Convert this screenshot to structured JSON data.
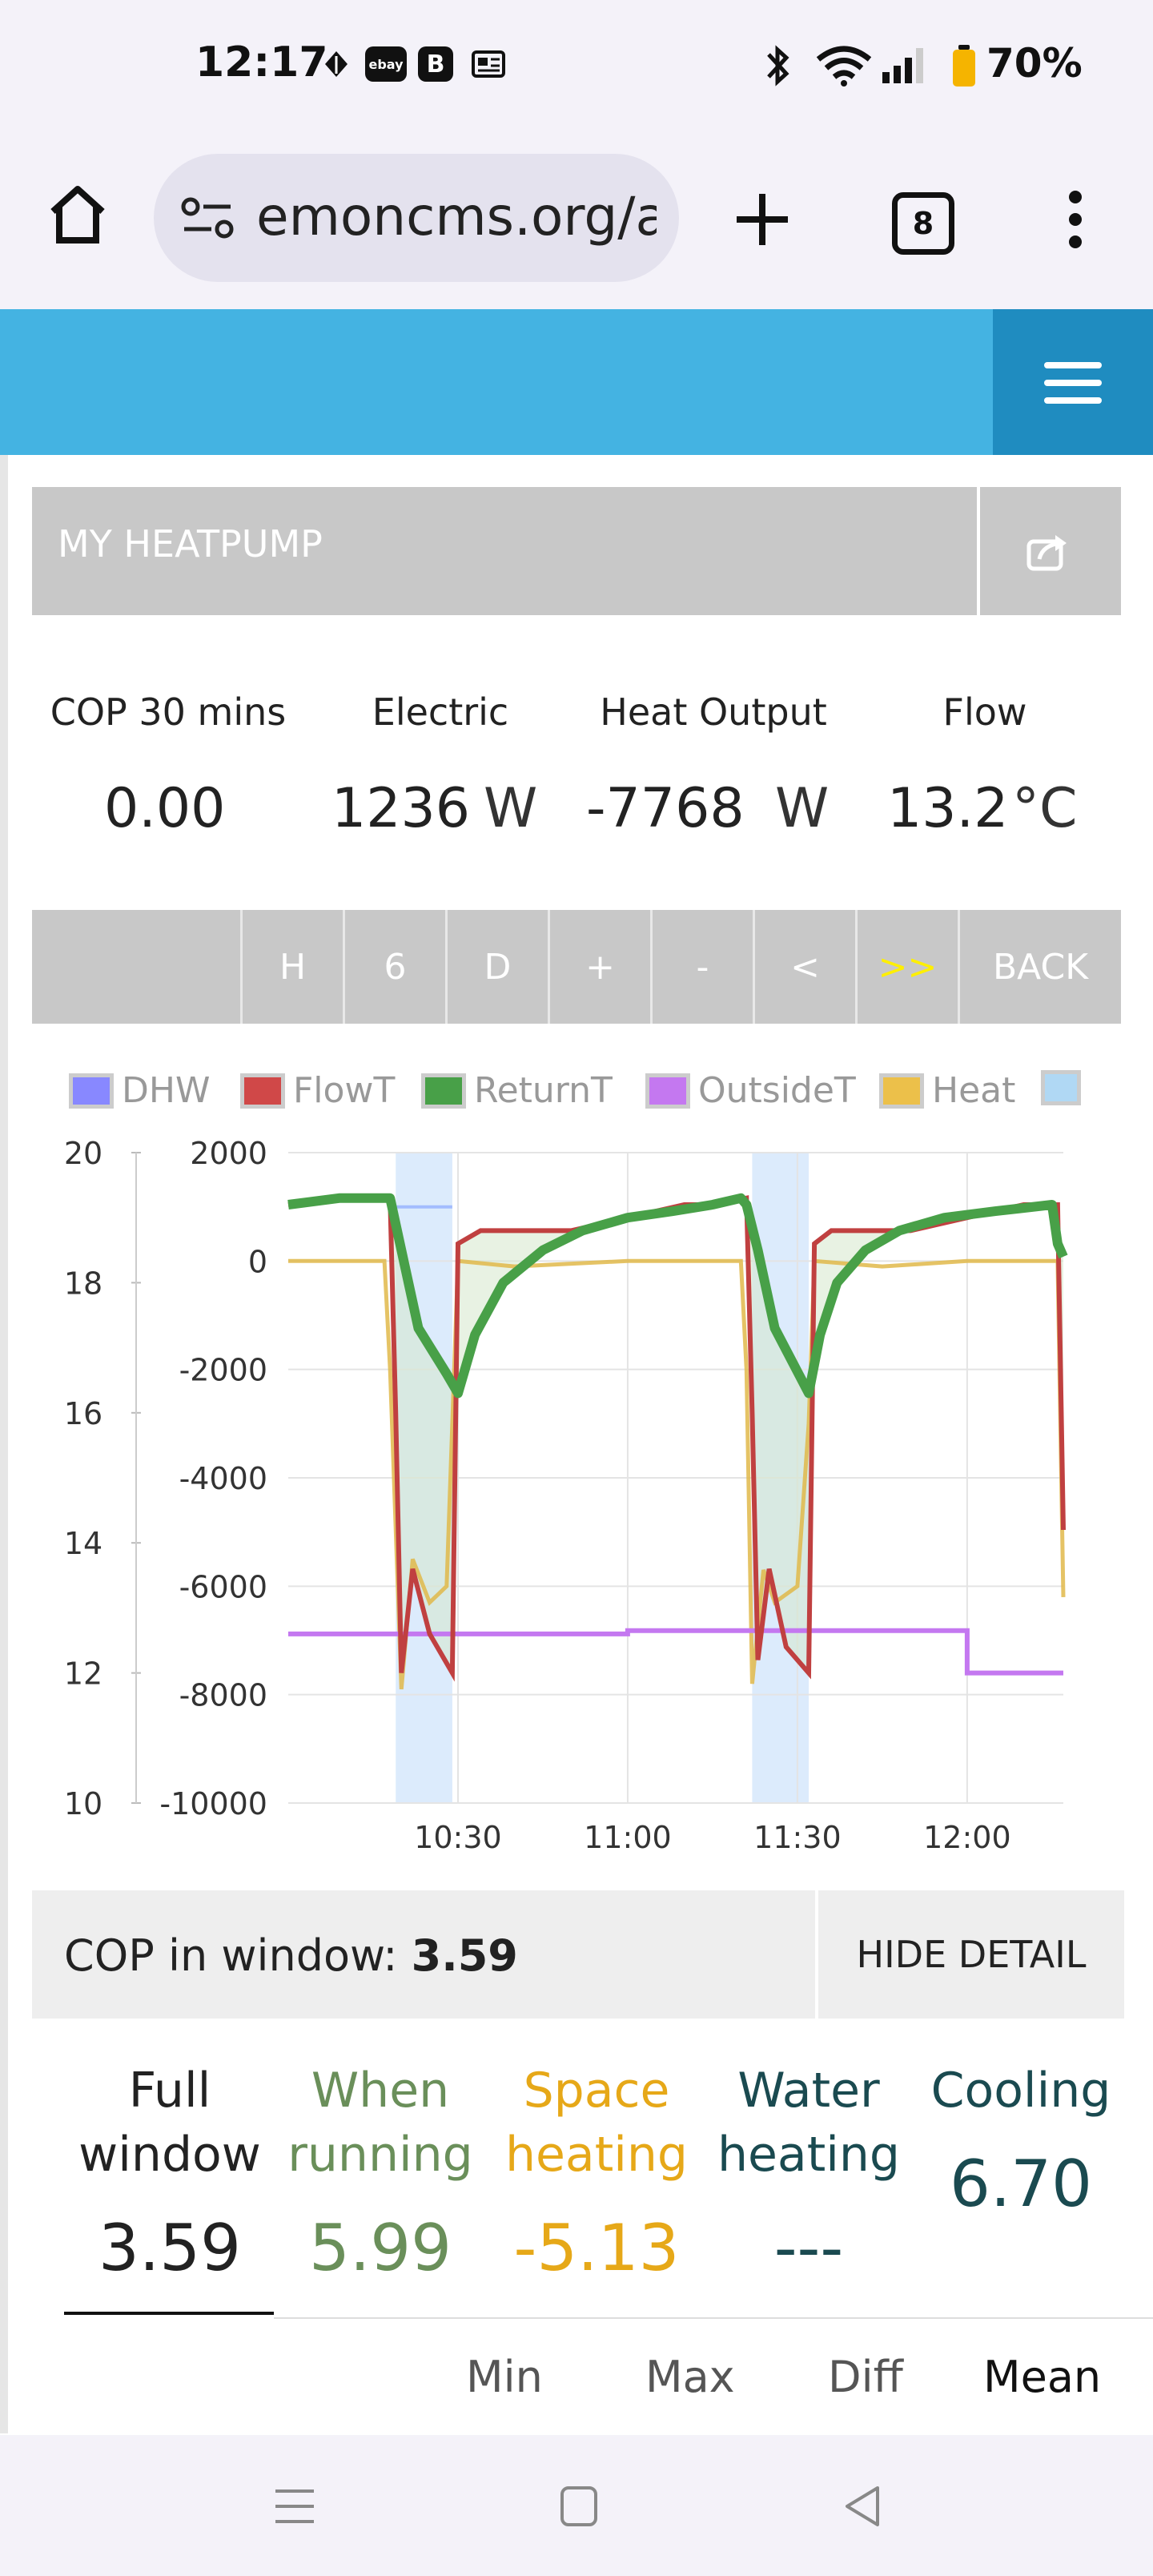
{
  "status_bar": {
    "time": "12:17",
    "notification_icons": [
      "leaf-icon",
      "ebay-icon",
      "b-icon",
      "news-icon"
    ],
    "system_icons": [
      "bluetooth-icon",
      "wifi-icon",
      "signal-icon",
      "battery-icon"
    ],
    "battery_percent": "70%"
  },
  "browser": {
    "url": "emoncms.org/a",
    "tab_count": "8",
    "icons": [
      "home-icon",
      "site-settings-icon",
      "new-tab-icon",
      "tabs-icon",
      "more-icon"
    ]
  },
  "header": {
    "menu_icon": "hamburger-icon",
    "accent": "#44b3e2"
  },
  "app": {
    "title": "MY HEATPUMP",
    "share_icon": "share-icon",
    "stats": [
      {
        "label": "COP 30 mins",
        "value": "0.00",
        "unit": ""
      },
      {
        "label": "Electric",
        "value": "1236",
        "unit": "W"
      },
      {
        "label": "Heat Output",
        "value": "-7768",
        "unit": "W"
      },
      {
        "label": "Flow",
        "value": "13.2",
        "unit": "°C"
      }
    ]
  },
  "toolbar": {
    "buttons": [
      "H",
      "6",
      "D",
      "+",
      "-",
      "<",
      ">>",
      "BACK"
    ]
  },
  "chart_data": {
    "type": "line",
    "legend": [
      {
        "name": "DHW",
        "color": "#8888ff"
      },
      {
        "name": "FlowT",
        "color": "#d04848"
      },
      {
        "name": "ReturnT",
        "color": "#48a048"
      },
      {
        "name": "OutsideT",
        "color": "#c478f0"
      },
      {
        "name": "Heat",
        "color": "#ecc04a"
      },
      {
        "name": "",
        "color": "#b0d8f4"
      }
    ],
    "x_ticks": [
      "10:30",
      "11:00",
      "11:30",
      "12:00"
    ],
    "y_left_ticks": [
      "20",
      "18",
      "16",
      "14",
      "12",
      "10"
    ],
    "y_right_ticks": [
      "2000",
      "0",
      "-2000",
      "-4000",
      "-6000",
      "-8000",
      "-10000"
    ],
    "y_left_range": [
      10,
      20
    ],
    "y_right_range": [
      -10000,
      2000
    ],
    "grid": true,
    "legend_position": "top",
    "dhw_periods": [
      [
        "10:19",
        "10:29"
      ],
      [
        "11:22",
        "11:32"
      ]
    ],
    "series": [
      {
        "name": "FlowT",
        "color": "#c04040",
        "x": [
          "10:00",
          "10:09",
          "10:18",
          "10:19",
          "10:20",
          "10:22",
          "10:25",
          "10:29",
          "10:30",
          "10:34",
          "10:40",
          "10:50",
          "11:00",
          "11:10",
          "11:15",
          "11:21",
          "11:22",
          "11:23",
          "11:25",
          "11:28",
          "11:32",
          "11:33",
          "11:36",
          "11:42",
          "11:50",
          "12:00",
          "12:10",
          "12:16",
          "12:17"
        ],
        "y": [
          19.2,
          19.3,
          19.3,
          16.0,
          12.0,
          13.6,
          12.6,
          12.0,
          18.6,
          18.8,
          18.8,
          18.8,
          19.0,
          19.2,
          19.2,
          19.3,
          16.0,
          12.2,
          13.6,
          12.4,
          12.0,
          18.6,
          18.8,
          18.8,
          18.8,
          19.0,
          19.2,
          19.2,
          14.2
        ]
      },
      {
        "name": "ReturnT",
        "color": "#48a048",
        "x": [
          "10:00",
          "10:09",
          "10:18",
          "10:20",
          "10:23",
          "10:28",
          "10:30",
          "10:33",
          "10:38",
          "10:45",
          "10:52",
          "11:00",
          "11:08",
          "11:15",
          "11:20",
          "11:21",
          "11:23",
          "11:26",
          "11:32",
          "11:34",
          "11:37",
          "11:42",
          "11:48",
          "11:56",
          "12:05",
          "12:15",
          "12:16",
          "12:17"
        ],
        "y": [
          19.2,
          19.3,
          19.3,
          18.5,
          17.3,
          16.6,
          16.3,
          17.2,
          18.0,
          18.5,
          18.8,
          19.0,
          19.1,
          19.2,
          19.3,
          19.2,
          18.5,
          17.3,
          16.3,
          17.2,
          18.0,
          18.5,
          18.8,
          19.0,
          19.1,
          19.2,
          18.6,
          18.4
        ]
      },
      {
        "name": "Heat",
        "color": "#e0b84a",
        "x": [
          "10:00",
          "10:17",
          "10:18",
          "10:20",
          "10:22",
          "10:25",
          "10:28",
          "10:29",
          "10:30",
          "10:40",
          "11:00",
          "11:20",
          "11:21",
          "11:22",
          "11:24",
          "11:26",
          "11:30",
          "11:32",
          "11:33",
          "11:45",
          "12:00",
          "12:16",
          "12:17"
        ],
        "y": [
          0,
          0,
          -2000,
          -7900,
          -5500,
          -6300,
          -6000,
          -3000,
          0,
          -100,
          0,
          0,
          -2000,
          -7800,
          -5700,
          -6300,
          -6000,
          -3000,
          0,
          -100,
          0,
          0,
          -6200
        ]
      },
      {
        "name": "OutsideT",
        "color": "#c478f0",
        "x": [
          "10:00",
          "11:00",
          "11:00",
          "12:00",
          "12:00",
          "12:17"
        ],
        "y": [
          12.6,
          12.6,
          12.65,
          12.65,
          12.0,
          12.0
        ]
      },
      {
        "name": "DHW",
        "color": "#8aa8ff",
        "x": [
          "10:18",
          "10:29"
        ],
        "y": [
          1000,
          1000
        ]
      }
    ]
  },
  "cop_window": {
    "label": "COP in window:",
    "value": "3.59",
    "hide_label": "HIDE DETAIL"
  },
  "detail": {
    "columns": [
      {
        "line1": "Full",
        "line2": "window",
        "value": "3.59",
        "color": "#222222"
      },
      {
        "line1": "When",
        "line2": "running",
        "value": "5.99",
        "color": "#6a8f5a"
      },
      {
        "line1": "Space",
        "line2": "heating",
        "value": "-5.13",
        "color": "#e6a818"
      },
      {
        "line1": "Water",
        "line2": "heating",
        "value": "---",
        "color": "#1a4a50"
      },
      {
        "line1": "Cooling",
        "line2": "",
        "value": "6.70",
        "color": "#1a4a50"
      }
    ],
    "stat_tabs": [
      "Min",
      "Max",
      "Diff",
      "Mean"
    ]
  },
  "nav_bar": {
    "icons": [
      "recents-icon",
      "home-icon",
      "back-icon"
    ]
  }
}
